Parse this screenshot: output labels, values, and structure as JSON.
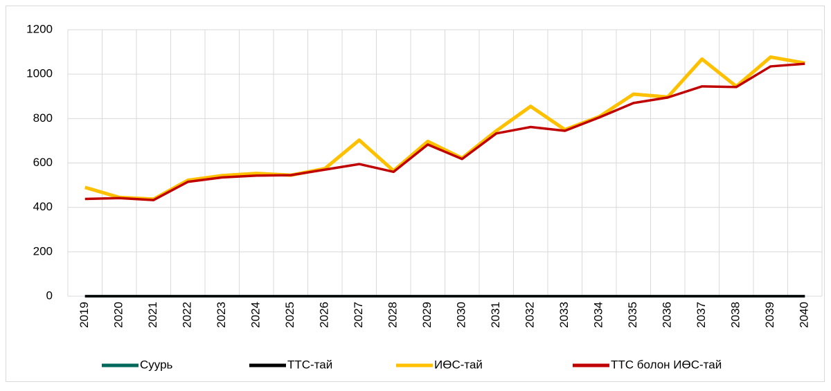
{
  "chart_data": {
    "type": "line",
    "categories": [
      "2019",
      "2020",
      "2021",
      "2022",
      "2023",
      "2024",
      "2025",
      "2026",
      "2027",
      "2028",
      "2029",
      "2030",
      "2031",
      "2032",
      "2033",
      "2034",
      "2035",
      "2036",
      "2037",
      "2038",
      "2039",
      "2040"
    ],
    "series": [
      {
        "name": "ИӨС-тай",
        "color": "#ffc000",
        "values": [
          490,
          445,
          437,
          522,
          543,
          553,
          545,
          575,
          703,
          565,
          697,
          622,
          745,
          855,
          750,
          808,
          910,
          897,
          1068,
          945,
          1077,
          1050
        ]
      },
      {
        "name": "ТТС болон ИӨС-тай",
        "color": "#c00000",
        "values": [
          438,
          442,
          433,
          515,
          535,
          543,
          545,
          570,
          595,
          560,
          683,
          618,
          733,
          762,
          745,
          805,
          870,
          895,
          945,
          942,
          1035,
          1047
        ]
      },
      {
        "name": "Суурь",
        "color": "#00695c",
        "values": [
          0,
          0,
          0,
          0,
          0,
          0,
          0,
          0,
          0,
          0,
          0,
          0,
          0,
          0,
          0,
          0,
          0,
          0,
          0,
          0,
          0,
          0
        ]
      },
      {
        "name": "ТТС-тай",
        "color": "#000000",
        "values": [
          0,
          0,
          0,
          0,
          0,
          0,
          0,
          0,
          0,
          0,
          0,
          0,
          0,
          0,
          0,
          0,
          0,
          0,
          0,
          0,
          0,
          0
        ]
      }
    ],
    "legend_order": [
      2,
      3,
      0,
      1
    ],
    "ylim": [
      0,
      1200
    ],
    "yticks": [
      0,
      200,
      400,
      600,
      800,
      1000,
      1200
    ],
    "grid": true,
    "legend": "bottom"
  }
}
